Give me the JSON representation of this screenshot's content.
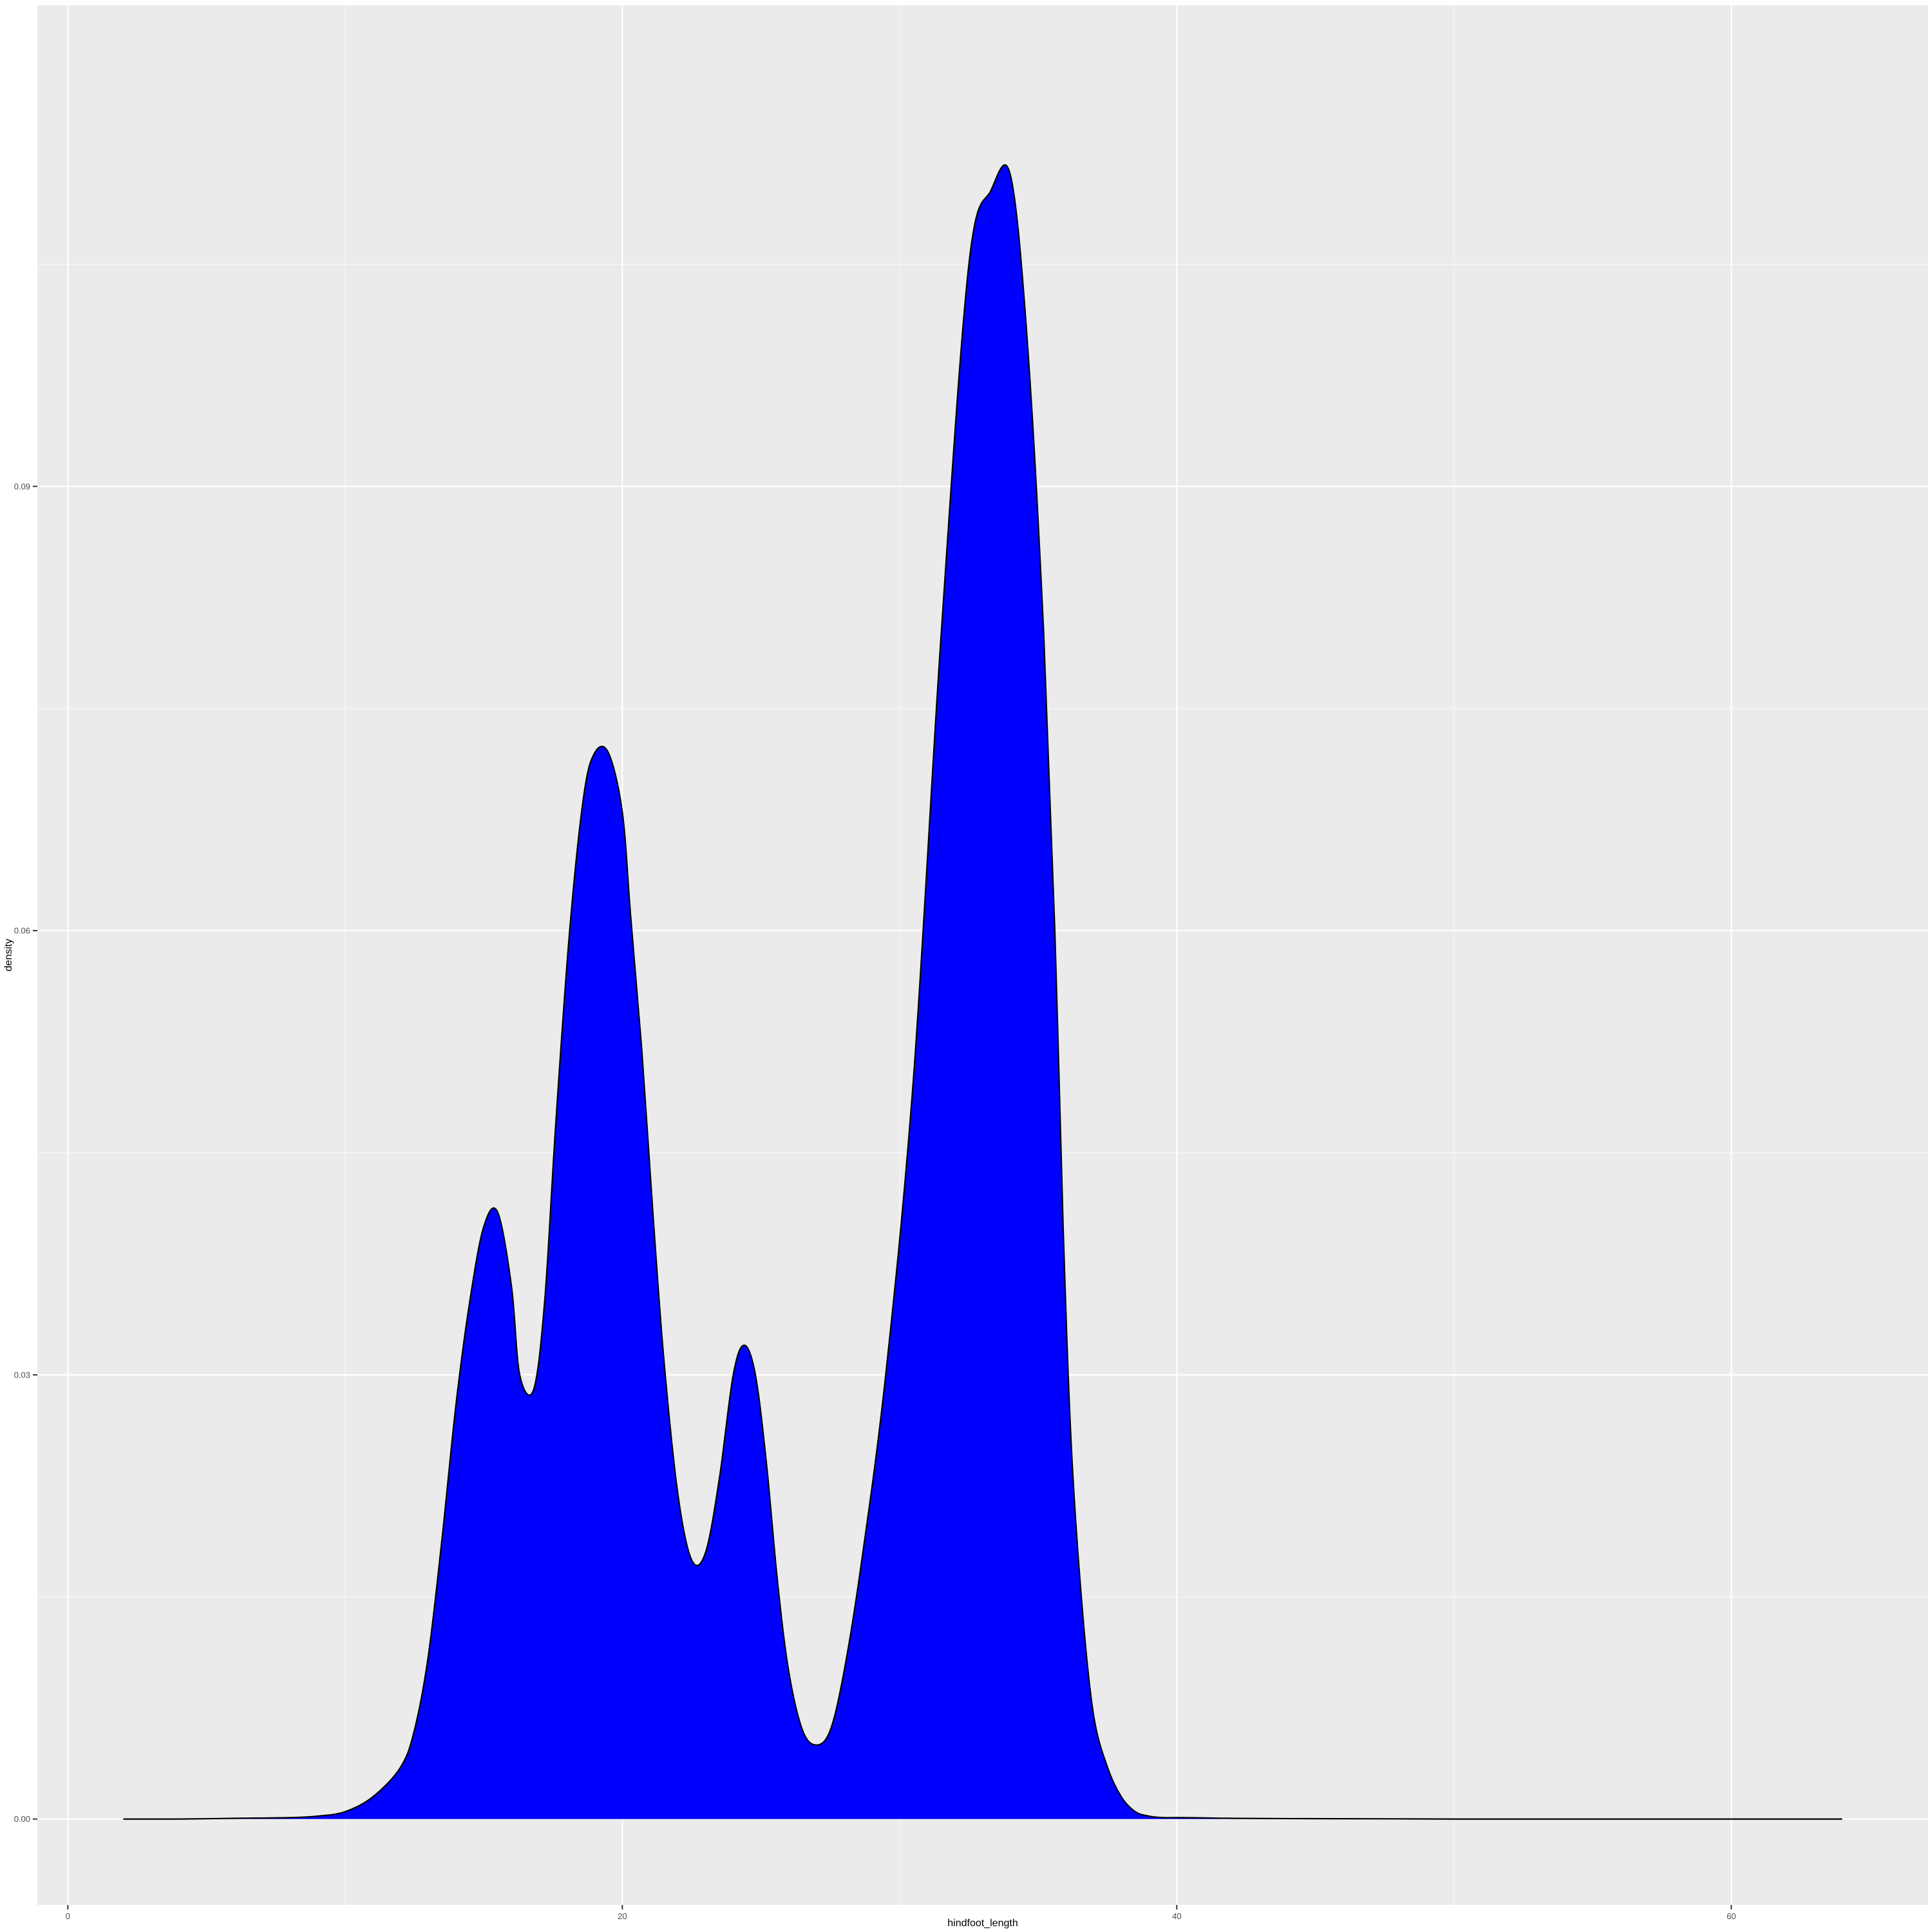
{
  "chart_data": {
    "type": "area",
    "title": "",
    "xlabel": "hindfoot_length",
    "ylabel": "density",
    "xlim": [
      -1.1,
      67.1
    ],
    "ylim": [
      -0.0058,
      0.1225
    ],
    "x_ticks": [
      0,
      20,
      40,
      60
    ],
    "x_tick_labels": [
      "0",
      "20",
      "40",
      "60"
    ],
    "x_minor_ticks": [
      10,
      30,
      50
    ],
    "y_ticks": [
      0,
      0.03,
      0.06,
      0.09
    ],
    "y_tick_labels": [
      "0.00",
      "0.03",
      "0.06",
      "0.09"
    ],
    "y_minor_ticks": [
      0.015,
      0.045,
      0.075,
      0.105
    ],
    "grid": true,
    "legend": "none",
    "colors": {
      "fill": "#0000ff",
      "outline": "#000000",
      "panel": "#ebebeb",
      "grid_major": "#ffffff",
      "grid_minor": "#f7f7f7"
    },
    "series": [
      {
        "x": [
          2,
          4,
          6,
          8,
          9,
          10,
          11,
          12,
          12.5,
          13,
          13.5,
          14,
          14.5,
          15,
          15.5,
          16,
          16.3,
          16.8,
          17.2,
          17.6,
          18.1,
          18.6,
          19,
          19.5,
          20,
          20.3,
          20.7,
          21.1,
          21.5,
          22,
          22.5,
          23,
          23.5,
          24,
          24.4,
          24.8,
          25.2,
          25.6,
          26,
          26.5,
          27,
          27.5,
          28,
          28.6,
          29.5,
          30.5,
          31.5,
          32.5,
          33.3,
          34,
          34.6,
          35.2,
          35.6,
          35.9,
          36.2,
          36.6,
          37,
          37.5,
          38,
          38.5,
          39,
          39.5,
          40,
          41,
          42,
          44,
          47,
          50,
          55,
          60,
          64
        ],
        "y": [
          0.0,
          0.0,
          5e-05,
          0.0001,
          0.0002,
          0.0005,
          0.0015,
          0.0035,
          0.006,
          0.011,
          0.019,
          0.028,
          0.035,
          0.04,
          0.041,
          0.036,
          0.03,
          0.029,
          0.035,
          0.047,
          0.06,
          0.069,
          0.072,
          0.072,
          0.068,
          0.061,
          0.052,
          0.041,
          0.031,
          0.022,
          0.0175,
          0.018,
          0.023,
          0.03,
          0.032,
          0.03,
          0.024,
          0.016,
          0.01,
          0.006,
          0.005,
          0.006,
          0.01,
          0.017,
          0.03,
          0.05,
          0.08,
          0.105,
          0.11,
          0.111,
          0.1,
          0.08,
          0.06,
          0.04,
          0.025,
          0.014,
          0.007,
          0.0035,
          0.0015,
          0.0005,
          0.0002,
          0.0001,
          0.0001,
          8e-05,
          5e-05,
          3e-05,
          2e-05,
          0.0,
          0.0,
          0.0,
          0.0
        ]
      }
    ]
  }
}
